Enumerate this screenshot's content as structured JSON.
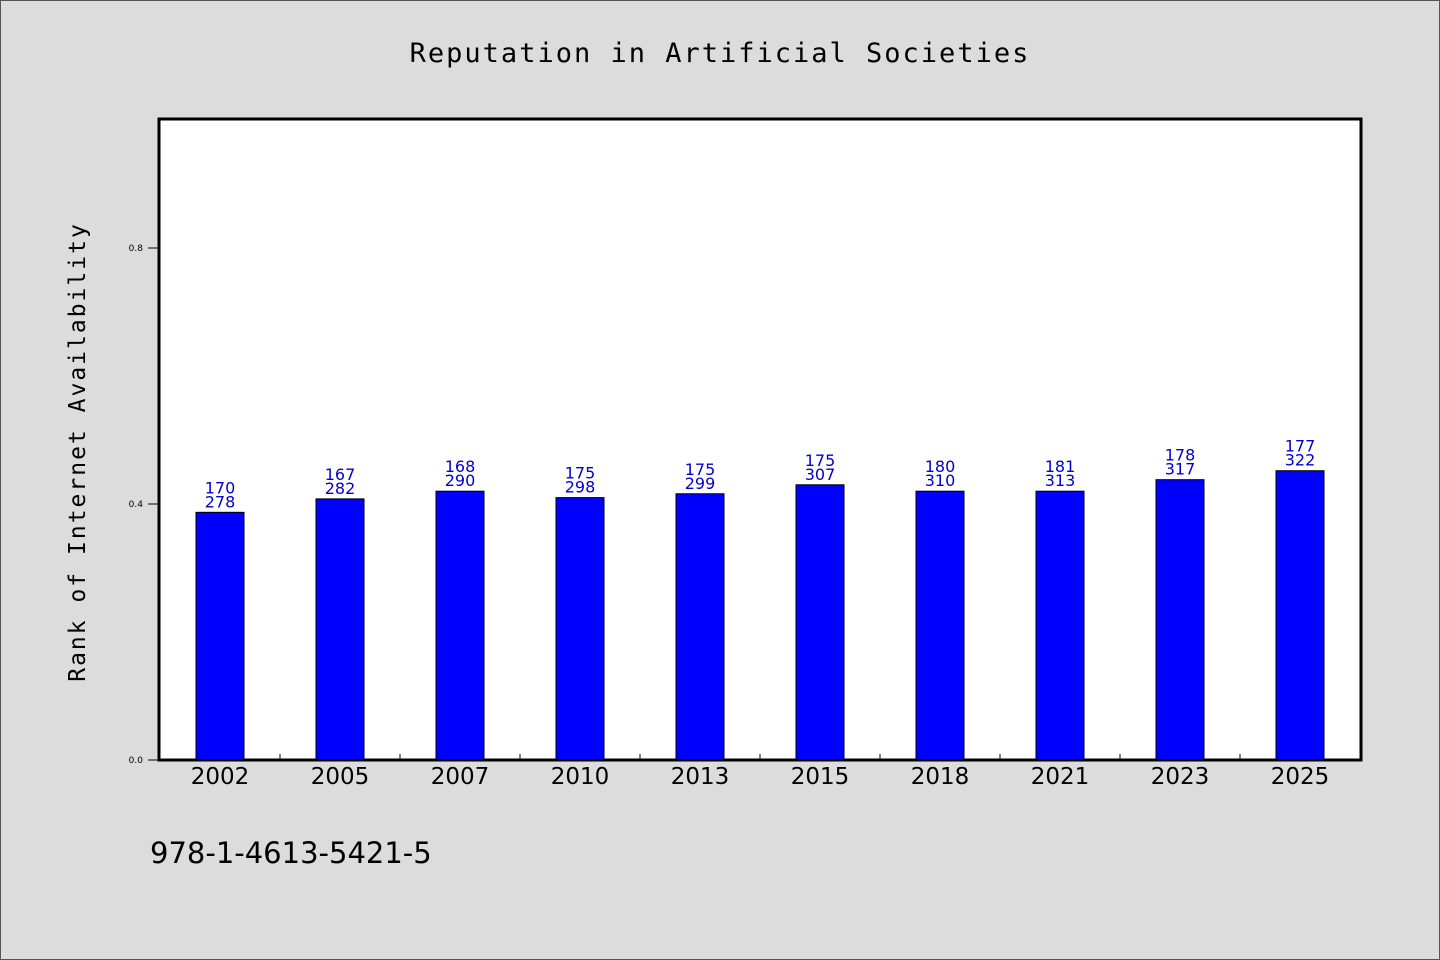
{
  "chart_data": {
    "type": "bar",
    "title": "Reputation in Artificial Societies",
    "xlabel": "",
    "ylabel": "Rank of Internet Availability",
    "categories": [
      "2002",
      "2005",
      "2007",
      "2010",
      "2013",
      "2015",
      "2018",
      "2021",
      "2023",
      "2025"
    ],
    "values": [
      0.387,
      0.408,
      0.42,
      0.41,
      0.416,
      0.43,
      0.42,
      0.42,
      0.438,
      0.452
    ],
    "label_top": [
      "170",
      "167",
      "168",
      "175",
      "175",
      "175",
      "180",
      "181",
      "178",
      "177"
    ],
    "label_bottom": [
      "278",
      "282",
      "290",
      "298",
      "299",
      "307",
      "310",
      "313",
      "317",
      "322"
    ],
    "y_ticks": [
      0.0,
      0.4,
      0.8
    ],
    "y_tick_labels": [
      "0.0",
      "0.4",
      "0.8"
    ],
    "ylim": [
      0,
      1.0
    ],
    "grid": false,
    "bar_color": "#0000ff",
    "label_color": "#0000cc",
    "legend": "none"
  },
  "footer_text": "978-1-4613-5421-5"
}
